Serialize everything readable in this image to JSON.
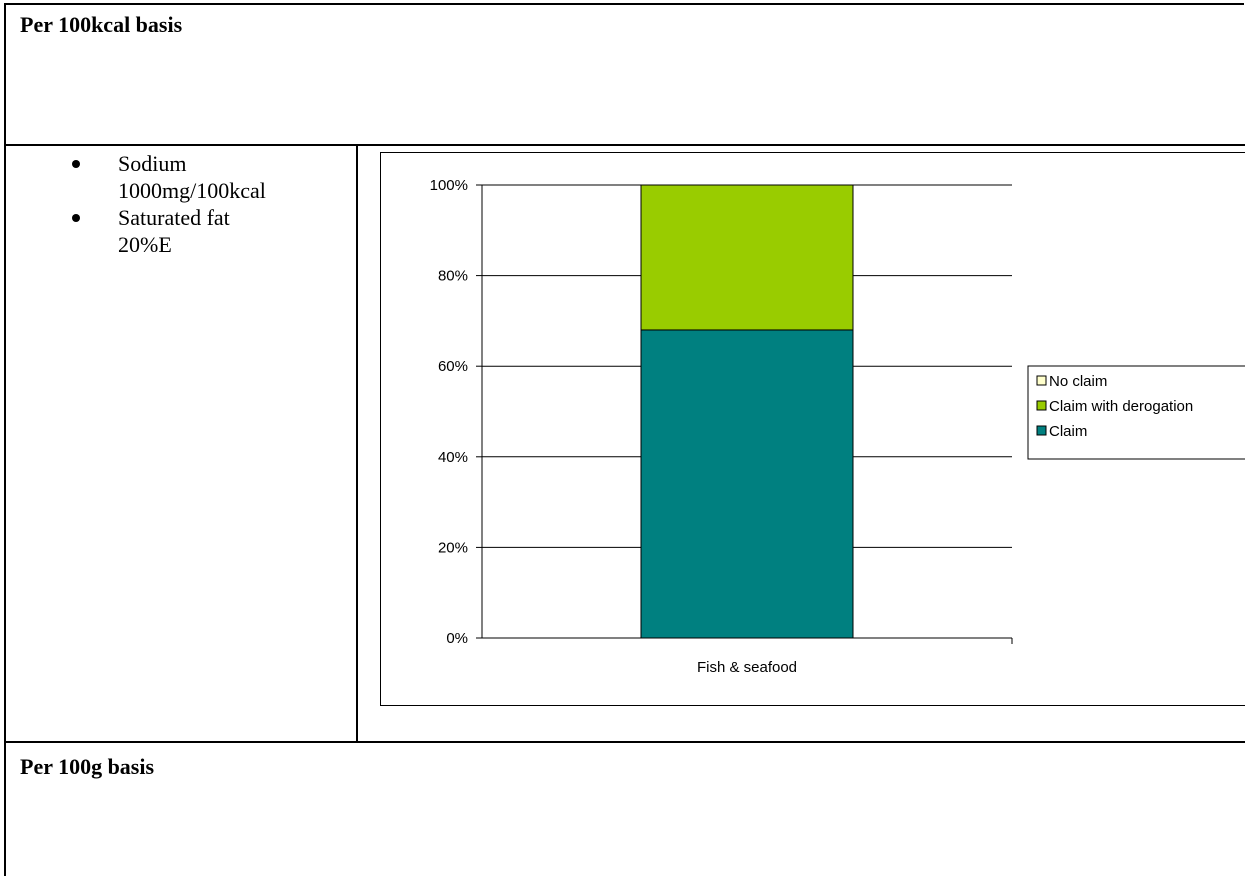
{
  "sections": {
    "top_title": "Per 100kcal basis",
    "bottom_title": "Per 100g basis"
  },
  "criteria": [
    {
      "line1": "Sodium",
      "line2": "1000mg/100kcal"
    },
    {
      "line1": "Saturated fat",
      "line2": "20%E"
    }
  ],
  "chart_data": {
    "type": "bar",
    "stacked": true,
    "categories": [
      "Fish & seafood"
    ],
    "series": [
      {
        "name": "Claim",
        "values": [
          68
        ],
        "color": "#008080"
      },
      {
        "name": "Claim with derogation",
        "values": [
          32
        ],
        "color": "#99CC00"
      },
      {
        "name": "No claim",
        "values": [
          0
        ],
        "color": "#FFFFCC"
      }
    ],
    "legend_order": [
      "No claim",
      "Claim with derogation",
      "Claim"
    ],
    "ylim": [
      0,
      100
    ],
    "yticks": [
      "0%",
      "20%",
      "40%",
      "60%",
      "80%",
      "100%"
    ],
    "grid": true,
    "legend_position": "right",
    "title": "",
    "xlabel": "",
    "ylabel": ""
  }
}
